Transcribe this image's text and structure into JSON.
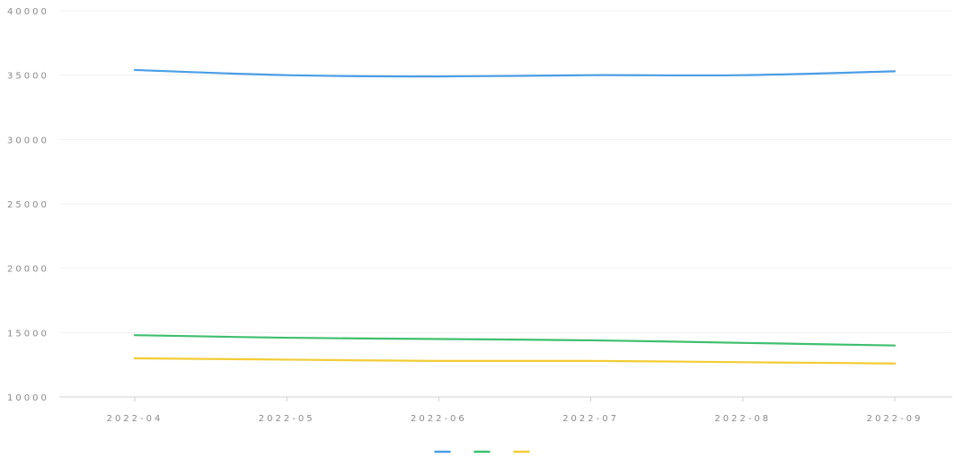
{
  "chart_data": {
    "type": "line",
    "title": "",
    "xlabel": "",
    "ylabel": "",
    "categories": [
      "2022-04",
      "2022-05",
      "2022-06",
      "2022-07",
      "2022-08",
      "2022-09"
    ],
    "ylim": [
      10000,
      40000
    ],
    "y_ticks": [
      "40000",
      "35000",
      "30000",
      "25000",
      "20000",
      "15000",
      "10000"
    ],
    "grid": true,
    "legend_position": "bottom",
    "series": [
      {
        "name": "",
        "color": "#4a9ee6",
        "values": [
          35400,
          35000,
          34900,
          35000,
          35000,
          35300
        ]
      },
      {
        "name": "",
        "color": "#3fbf6f",
        "values": [
          14800,
          14600,
          14500,
          14400,
          14200,
          14000
        ]
      },
      {
        "name": "",
        "color": "#f2cc35",
        "values": [
          13000,
          12900,
          12800,
          12800,
          12700,
          12600
        ]
      }
    ]
  }
}
